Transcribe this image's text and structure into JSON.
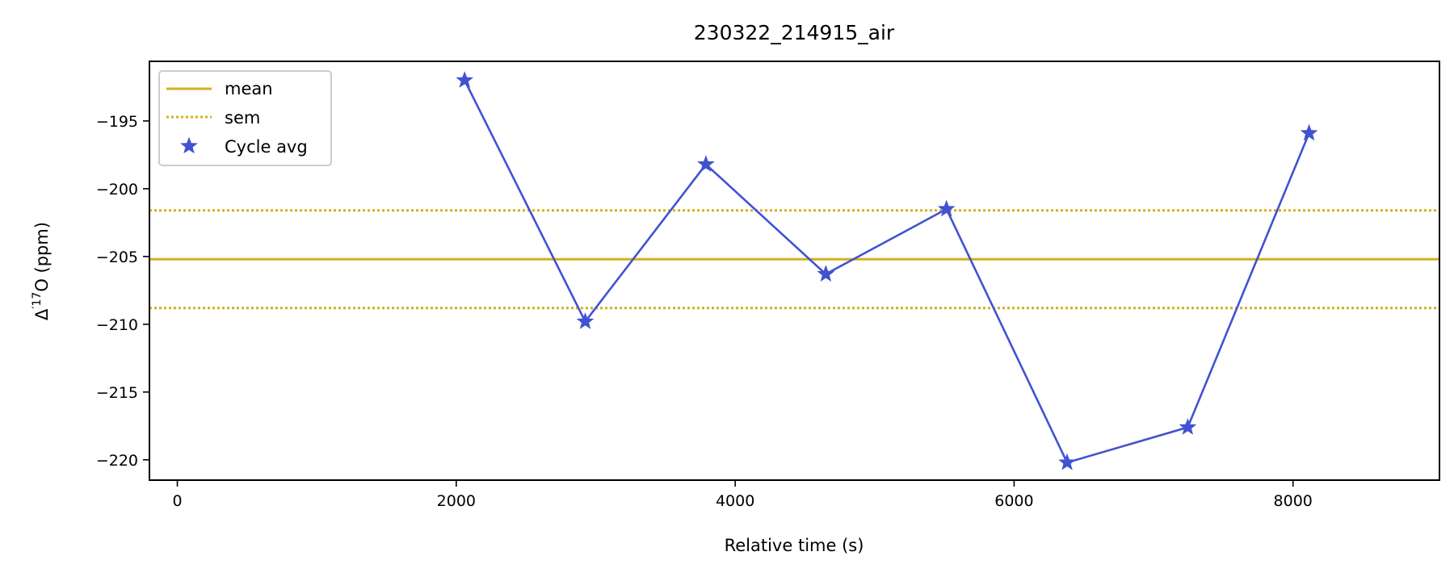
{
  "chart_data": {
    "type": "line",
    "title": "230322_214915_air",
    "xlabel": "Relative time (s)",
    "ylabel_prefix": "Δ",
    "ylabel_sup": "′17",
    "ylabel_suffix": "O (ppm)",
    "xlim": [
      -200,
      9050
    ],
    "ylim": [
      -221.5,
      -190.6
    ],
    "xticks": [
      0,
      2000,
      4000,
      6000,
      8000
    ],
    "yticks": [
      -195,
      -200,
      -205,
      -210,
      -215,
      -220
    ],
    "grid": false,
    "legend_position": "top-left",
    "mean": -205.2,
    "sem_upper": -201.6,
    "sem_lower": -208.8,
    "series": [
      {
        "name": "Cycle avg",
        "x": [
          2060,
          2925,
          3790,
          4650,
          5515,
          6380,
          7245,
          8115
        ],
        "y": [
          -192.0,
          -209.8,
          -198.2,
          -206.3,
          -201.5,
          -220.2,
          -217.6,
          -195.9
        ]
      }
    ],
    "legend": [
      {
        "label": "mean",
        "style": "solid"
      },
      {
        "label": "sem",
        "style": "dotted"
      },
      {
        "label": "Cycle avg",
        "style": "marker"
      }
    ],
    "colors": {
      "mean": "#d4af1f",
      "sem": "#d4af1f",
      "series": "#4152d1"
    }
  }
}
